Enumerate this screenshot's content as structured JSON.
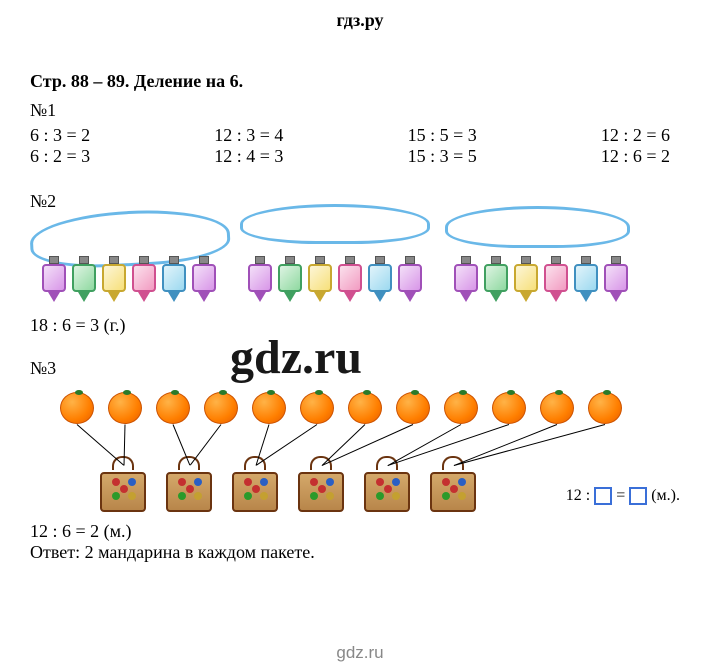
{
  "header": "гдз.ру",
  "footer": "gdz.ru",
  "watermark_center": "gdz.ru",
  "page_title": "Стр. 88 – 89. Деление на 6.",
  "p1": {
    "label": "№1",
    "columns": [
      [
        "6 : 3 = 2",
        "6 : 2 = 3"
      ],
      [
        "12 : 3 = 4",
        "12 : 4 = 3"
      ],
      [
        "15 : 5 = 3",
        "15 : 3 = 5"
      ],
      [
        "12 : 2 = 6",
        "12 : 6 = 2"
      ]
    ]
  },
  "p2": {
    "label": "№2",
    "equation": "18 : 6 = 3 (г.)",
    "lantern_groups": 3,
    "lanterns_per_group": 6,
    "lantern_colors": [
      "#d896e8",
      "#8fd9a0",
      "#f7e07a",
      "#f29bc1",
      "#9cd9f0",
      "#d896e8"
    ],
    "lantern_border_colors": [
      "#a050b8",
      "#40a060",
      "#c8a830",
      "#d05090",
      "#4090c0",
      "#a050b8"
    ],
    "annotation_color": "#6ab8e8"
  },
  "p3": {
    "label": "№3",
    "oranges": 12,
    "bags": 6,
    "bag_dot_colors": [
      "#c43030",
      "#2a5fc4",
      "#2a9a2a",
      "#c4a030"
    ],
    "formula_prefix": "12 :",
    "formula_suffix": "(м.).",
    "equation": "12 : 6 = 2 (м.)",
    "answer": "Ответ: 2 мандарина в каждом пакете."
  },
  "colors": {
    "text": "#000000",
    "bg": "#ffffff",
    "footer": "#888888",
    "box_border": "#3a6fd8"
  }
}
